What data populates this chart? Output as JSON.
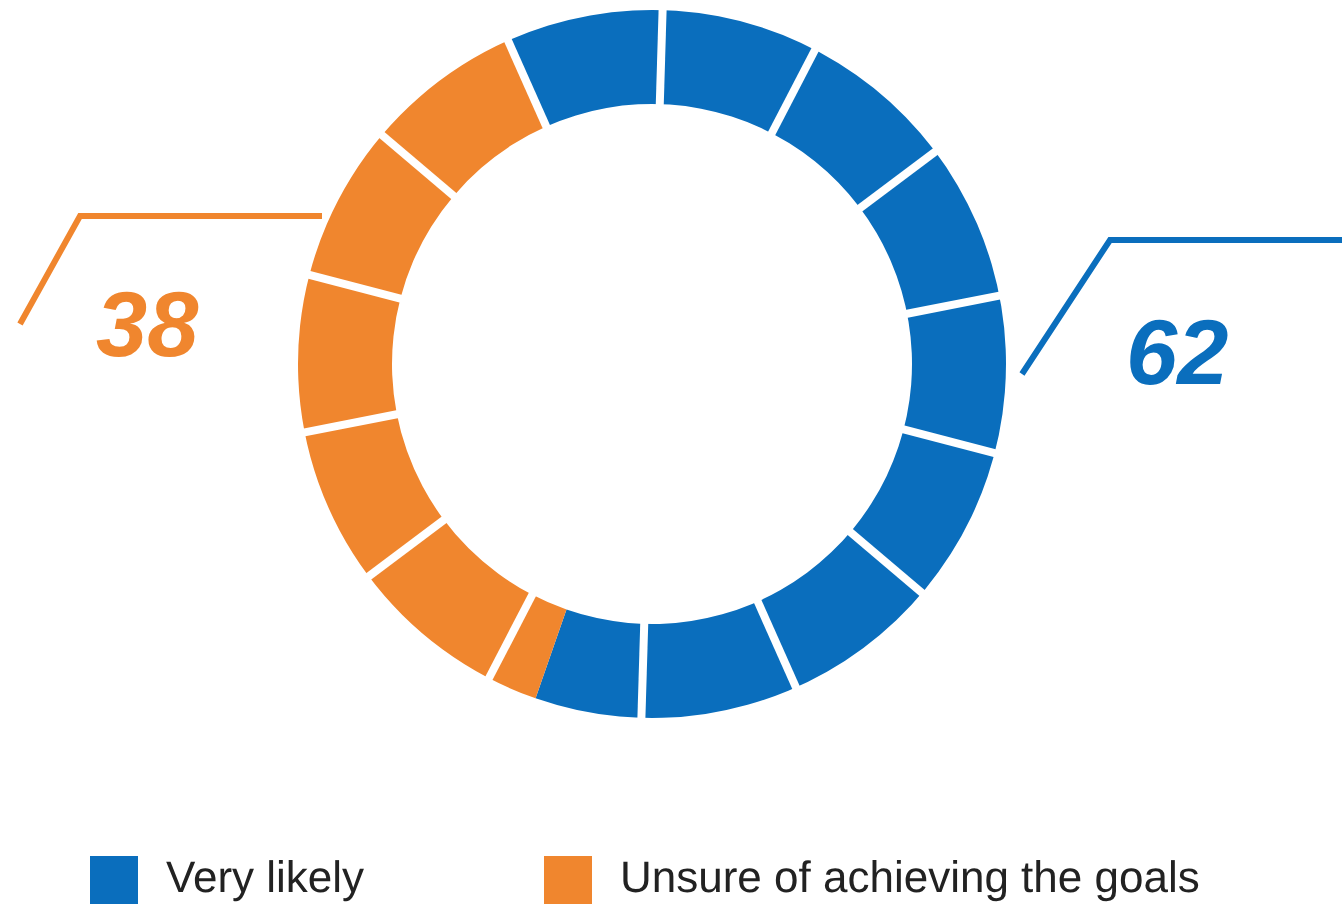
{
  "chart_data": {
    "type": "donut",
    "categories": [
      "Very likely",
      "Unsure of achieving the goals"
    ],
    "values": [
      62,
      38
    ],
    "colors": [
      "#0a6ebd",
      "#f0862e"
    ],
    "data_labels": true,
    "legend": "bottom"
  }
}
